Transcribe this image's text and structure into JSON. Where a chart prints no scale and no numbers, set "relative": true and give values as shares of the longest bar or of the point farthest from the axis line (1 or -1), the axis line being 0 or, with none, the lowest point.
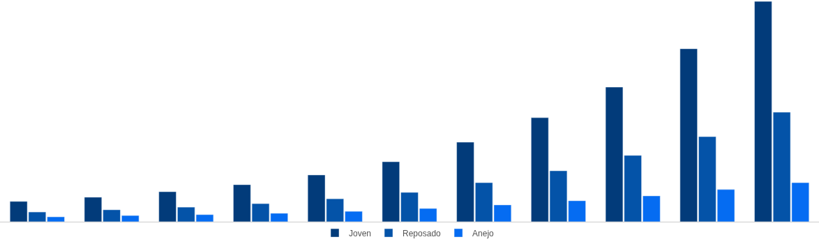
{
  "chart_data": {
    "type": "bar",
    "relative": true,
    "categories": [
      null,
      null,
      null,
      null,
      null,
      null,
      null,
      null,
      null,
      null,
      null
    ],
    "legend": "bottom",
    "series": [
      {
        "name": "Joven",
        "color": "#023b7a",
        "values": [
          0.092,
          0.111,
          0.136,
          0.168,
          0.212,
          0.272,
          0.361,
          0.472,
          0.611,
          0.785,
          1
        ]
      },
      {
        "name": "Reposado",
        "color": "#0453a8",
        "values": [
          0.044,
          0.054,
          0.066,
          0.082,
          0.104,
          0.133,
          0.177,
          0.231,
          0.301,
          0.386,
          0.497
        ]
      },
      {
        "name": "Anejo",
        "color": "#056cf2",
        "values": [
          0.022,
          0.028,
          0.032,
          0.038,
          0.047,
          0.06,
          0.076,
          0.095,
          0.117,
          0.146,
          0.177
        ]
      }
    ]
  }
}
